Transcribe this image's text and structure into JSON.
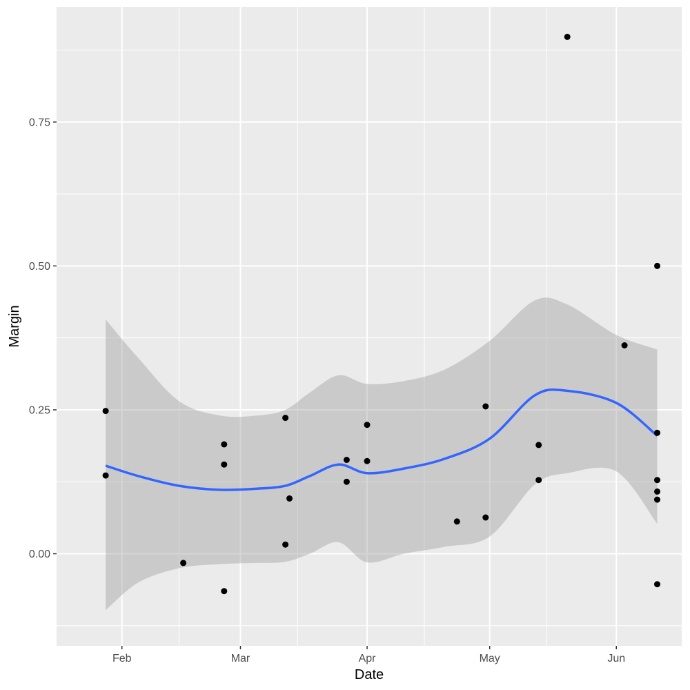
{
  "chart_data": {
    "type": "scatter",
    "title": "",
    "xlabel": "Date",
    "ylabel": "Margin",
    "x_type": "date",
    "year": 2020,
    "xlim": [
      "2020-01-16",
      "2020-06-17"
    ],
    "ylim": [
      -0.16,
      0.95
    ],
    "x_tick_labels": [
      "Feb",
      "Mar",
      "Apr",
      "May",
      "Jun"
    ],
    "x_tick_dates": [
      "2020-02-01",
      "2020-03-01",
      "2020-04-01",
      "2020-05-01",
      "2020-06-01"
    ],
    "x_minor_dates": [
      "2020-02-15",
      "2020-03-15",
      "2020-04-15",
      "2020-05-15"
    ],
    "y_ticks": [
      0.0,
      0.25,
      0.5,
      0.75
    ],
    "y_tick_labels": [
      "0.00",
      "0.25",
      "0.50",
      "0.75"
    ],
    "y_minor": [
      -0.125,
      0.125,
      0.375,
      0.625,
      0.875
    ],
    "grid": true,
    "legend": "none",
    "colors": {
      "panel": "#ebebeb",
      "grid": "#ffffff",
      "points": "#000000",
      "smooth_line": "#3366ff",
      "ribbon": "#999999"
    },
    "points": [
      {
        "x": "2020-01-28",
        "y": 0.248
      },
      {
        "x": "2020-01-28",
        "y": 0.136
      },
      {
        "x": "2020-02-16",
        "y": -0.016
      },
      {
        "x": "2020-02-26",
        "y": 0.19
      },
      {
        "x": "2020-02-26",
        "y": 0.155
      },
      {
        "x": "2020-02-26",
        "y": -0.065
      },
      {
        "x": "2020-03-12",
        "y": 0.236
      },
      {
        "x": "2020-03-12",
        "y": 0.016
      },
      {
        "x": "2020-03-13",
        "y": 0.096
      },
      {
        "x": "2020-03-27",
        "y": 0.163
      },
      {
        "x": "2020-03-27",
        "y": 0.125
      },
      {
        "x": "2020-04-01",
        "y": 0.224
      },
      {
        "x": "2020-04-01",
        "y": 0.161
      },
      {
        "x": "2020-04-23",
        "y": 0.056
      },
      {
        "x": "2020-04-30",
        "y": 0.256
      },
      {
        "x": "2020-04-30",
        "y": 0.063
      },
      {
        "x": "2020-05-13",
        "y": 0.189
      },
      {
        "x": "2020-05-13",
        "y": 0.128
      },
      {
        "x": "2020-05-20",
        "y": 0.898
      },
      {
        "x": "2020-06-03",
        "y": 0.362
      },
      {
        "x": "2020-06-11",
        "y": 0.5
      },
      {
        "x": "2020-06-11",
        "y": 0.21
      },
      {
        "x": "2020-06-11",
        "y": 0.128
      },
      {
        "x": "2020-06-11",
        "y": 0.108
      },
      {
        "x": "2020-06-11",
        "y": 0.094
      },
      {
        "x": "2020-06-11",
        "y": -0.053
      }
    ],
    "smooth": [
      {
        "x": "2020-01-28",
        "y": 0.153,
        "lower": -0.098,
        "upper": 0.407
      },
      {
        "x": "2020-02-05",
        "y": 0.135,
        "lower": -0.05,
        "upper": 0.34
      },
      {
        "x": "2020-02-15",
        "y": 0.118,
        "lower": -0.025,
        "upper": 0.265
      },
      {
        "x": "2020-02-25",
        "y": 0.111,
        "lower": -0.018,
        "upper": 0.24
      },
      {
        "x": "2020-03-05",
        "y": 0.113,
        "lower": -0.016,
        "upper": 0.24
      },
      {
        "x": "2020-03-12",
        "y": 0.118,
        "lower": -0.014,
        "upper": 0.25
      },
      {
        "x": "2020-03-18",
        "y": 0.135,
        "lower": 0.0,
        "upper": 0.28
      },
      {
        "x": "2020-03-25",
        "y": 0.155,
        "lower": 0.02,
        "upper": 0.31
      },
      {
        "x": "2020-04-01",
        "y": 0.14,
        "lower": -0.015,
        "upper": 0.295
      },
      {
        "x": "2020-04-10",
        "y": 0.148,
        "lower": 0.0,
        "upper": 0.3
      },
      {
        "x": "2020-04-20",
        "y": 0.165,
        "lower": 0.012,
        "upper": 0.32
      },
      {
        "x": "2020-05-01",
        "y": 0.2,
        "lower": 0.03,
        "upper": 0.37
      },
      {
        "x": "2020-05-12",
        "y": 0.275,
        "lower": 0.12,
        "upper": 0.44
      },
      {
        "x": "2020-05-20",
        "y": 0.283,
        "lower": 0.14,
        "upper": 0.433
      },
      {
        "x": "2020-06-01",
        "y": 0.262,
        "lower": 0.143,
        "upper": 0.38
      },
      {
        "x": "2020-06-11",
        "y": 0.205,
        "lower": 0.052,
        "upper": 0.355
      }
    ]
  }
}
